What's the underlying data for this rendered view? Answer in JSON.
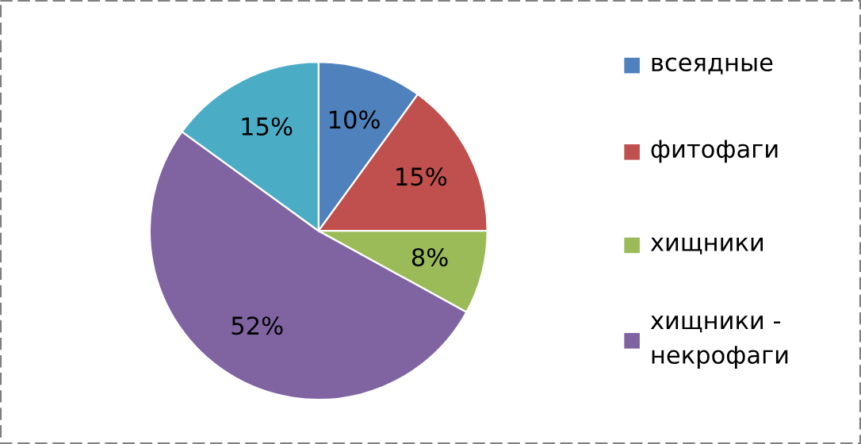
{
  "chart_data": {
    "type": "pie",
    "categories": [
      "всеядные",
      "фитофаги",
      "хищники",
      "хищники - некрофаги",
      null
    ],
    "values": [
      10,
      15,
      8,
      52,
      15
    ],
    "colors": [
      "#4f81bd",
      "#c0504d",
      "#9bbb59",
      "#8064a2",
      "#4bacc6"
    ],
    "value_labels": [
      "10%",
      "15%",
      "8%",
      "52%",
      "15%"
    ],
    "legend": "right"
  }
}
